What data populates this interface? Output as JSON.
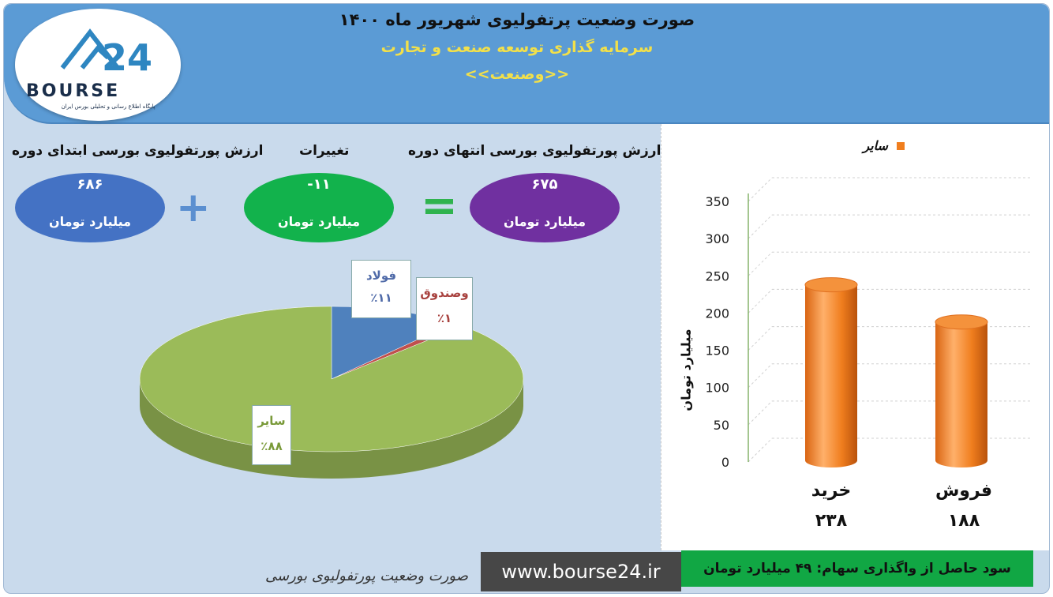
{
  "header": {
    "title": "صورت وضعیت پرتفولیوی شهریور ماه ۱۴۰۰",
    "company": "سرمایه گذاری توسعه صنعت و تجارت",
    "symbol": "<<وصنعت>>"
  },
  "logo": {
    "brand": "BOURSE",
    "number": "24",
    "subtitle": "پایگاه اطلاع رسانی و تحلیلی بورس ایران"
  },
  "summary": {
    "start_label": "ارزش پورتفولیوی بورسی ابتدای دوره",
    "start_value": "۶۸۶",
    "change_label": "تغییرات",
    "change_value": "-۱۱",
    "end_label": "ارزش پورتفولیوی بورسی انتهای دوره",
    "end_value": "۶۷۵",
    "unit": "میلیارد تومان",
    "plus": "+",
    "equals": "="
  },
  "chart_data": [
    {
      "type": "pie",
      "slices": [
        {
          "name": "فولاد",
          "label": "٪۱۱",
          "value": 11,
          "color": "#4f81bd"
        },
        {
          "name": "وصندوق",
          "label": "٪۱",
          "value": 1,
          "color": "#c0504d"
        },
        {
          "name": "سایر",
          "label": "٪۸۸",
          "value": 88,
          "color": "#9bbb59"
        }
      ]
    },
    {
      "type": "bar",
      "categories": [
        "خرید",
        "فروش"
      ],
      "value_labels": [
        "۲۳۸",
        "۱۸۸"
      ],
      "series": [
        {
          "name": "سایر",
          "values": [
            238,
            188
          ],
          "color": "#f07e1e"
        }
      ],
      "ylabel": "میلیارد تومان",
      "ylim": [
        0,
        350
      ],
      "yticks": [
        0,
        50,
        100,
        150,
        200,
        250,
        300,
        350
      ],
      "grid": true,
      "legend": "top-right"
    }
  ],
  "footer": {
    "caption": "صورت وضعیت پورتفولیوی بورسی",
    "site": "www.bourse24.ir",
    "profit": "سود حاصل از واگذاری سهام: ۴۹ میلیارد تومان"
  }
}
